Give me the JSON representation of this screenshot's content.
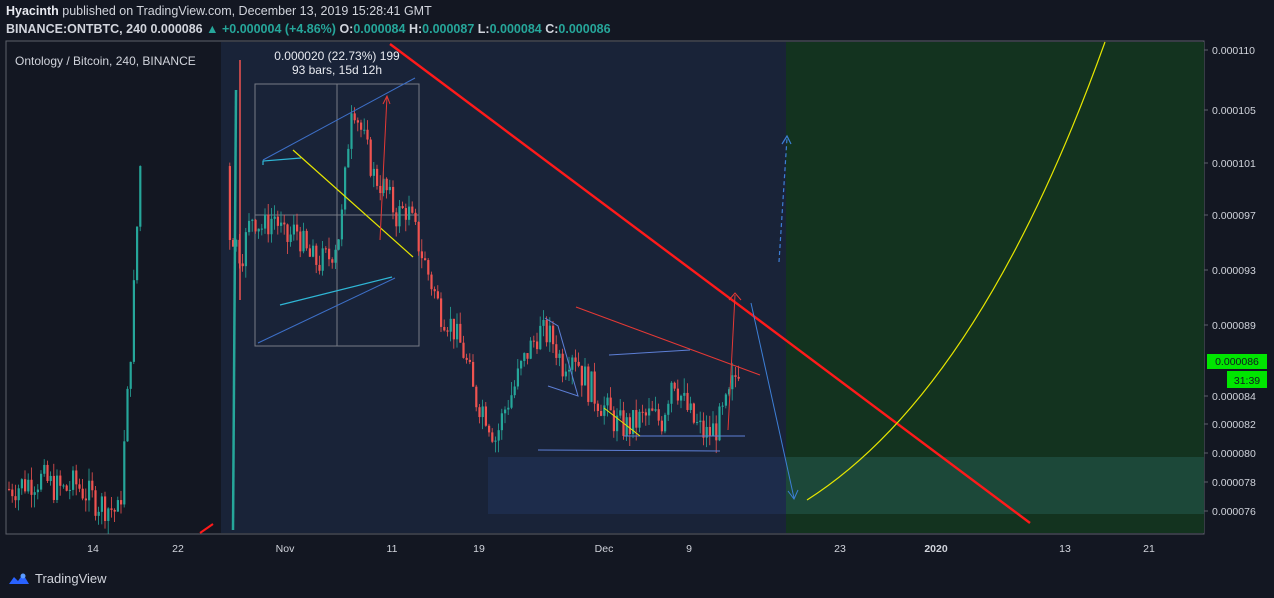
{
  "header": {
    "author": "Hyacinth",
    "published_text": "published on TradingView.com, December 13, 2019 15:28:41 GMT",
    "symbol_line": "BINANCE:ONTBTC, 240",
    "last_price": "0.000086",
    "change": "+0.000004 (+4.86%)",
    "open_label": "O:",
    "open": "0.000084",
    "high_label": "H:",
    "high": "0.000087",
    "low_label": "L:",
    "low": "0.000084",
    "close_label": "C:",
    "close": "0.000086"
  },
  "chart_title": "Ontology / Bitcoin, 240, BINANCE",
  "measure": {
    "line1": "0.000020 (22.73%) 199",
    "line2": "93 bars, 15d 12h"
  },
  "price_badge": "0.000086",
  "timer_badge": "31:39",
  "brand": "TradingView",
  "colors": {
    "background": "#131722",
    "up": "#26a69a",
    "down": "#ef5350",
    "accent_green": "#00e600",
    "trendline": "#ff1a1a",
    "target_curve": "#e6e600",
    "zone_green": "#13331f"
  },
  "chart_data": {
    "type": "candlestick",
    "y_ticks": [
      "0.000110",
      "0.000105",
      "0.000101",
      "0.000097",
      "0.000093",
      "0.000089",
      "0.000084",
      "0.000082",
      "0.000080",
      "0.000078",
      "0.000076"
    ],
    "x_ticks": [
      "14",
      "22",
      "Nov",
      "11",
      "19",
      "Dec",
      "9",
      "23",
      "2020",
      "13",
      "21"
    ],
    "current_price": 8.6e-05,
    "price_path": [
      [
        0,
        7.75e-05
      ],
      [
        1,
        7.78e-05
      ],
      [
        2,
        7.81e-05
      ],
      [
        3,
        7.82e-05
      ],
      [
        4,
        7.77e-05
      ],
      [
        5,
        7.74e-05
      ],
      [
        6,
        7.79e-05
      ],
      [
        7,
        7.72e-05
      ],
      [
        8,
        7.66e-05
      ],
      [
        9,
        7.63e-05
      ],
      [
        10,
        7.58e-05
      ],
      [
        11,
        8.7e-05
      ],
      [
        12,
        0.000103
      ],
      [
        13,
        9.8e-05
      ],
      [
        14,
        9.4e-05
      ],
      [
        15,
        9.25e-05
      ],
      [
        16,
        8.9e-05
      ],
      [
        17,
        9.5e-05
      ],
      [
        18,
        9.2e-05
      ],
      [
        19,
        9e-05
      ],
      [
        20,
        9.6e-05
      ],
      [
        21,
        9.4e-05
      ],
      [
        22,
        9.7e-05
      ],
      [
        23,
        9.6e-05
      ],
      [
        24,
        9.7e-05
      ],
      [
        25,
        9.5e-05
      ],
      [
        26,
        9.6e-05
      ],
      [
        27,
        9.4e-05
      ],
      [
        28,
        9.35e-05
      ],
      [
        29,
        9.4e-05
      ],
      [
        30,
        9.6e-05
      ],
      [
        31,
        0.000106
      ],
      [
        32,
        0.000103
      ],
      [
        33,
        0.0001
      ],
      [
        34,
        9.9e-05
      ],
      [
        35,
        9.7e-05
      ],
      [
        36,
        9.75e-05
      ],
      [
        37,
        9.5e-05
      ],
      [
        38,
        9.25e-05
      ],
      [
        39,
        9e-05
      ],
      [
        40,
        8.9e-05
      ],
      [
        41,
        8.7e-05
      ],
      [
        42,
        8.4e-05
      ],
      [
        43,
        8.3e-05
      ],
      [
        44,
        8.1e-05
      ],
      [
        45,
        8.35e-05
      ],
      [
        46,
        8.5e-05
      ],
      [
        47,
        8.7e-05
      ],
      [
        48,
        8.85e-05
      ],
      [
        49,
        8.8e-05
      ],
      [
        50,
        8.6e-05
      ],
      [
        51,
        8.7e-05
      ],
      [
        52,
        8.5e-05
      ],
      [
        53,
        8.4e-05
      ],
      [
        54,
        8.3e-05
      ],
      [
        55,
        8.2e-05
      ],
      [
        56,
        8.18e-05
      ],
      [
        57,
        8.23e-05
      ],
      [
        58,
        8.26e-05
      ],
      [
        59,
        8.22e-05
      ],
      [
        60,
        8.55e-05
      ],
      [
        61,
        8.35e-05
      ],
      [
        62,
        8.2e-05
      ],
      [
        63,
        8.12e-05
      ],
      [
        64,
        8.18e-05
      ],
      [
        65,
        8.35e-05
      ],
      [
        66,
        8.6e-05
      ]
    ],
    "drawings": {
      "descending_resistance": [
        [
          0.000111,
          "from Nov 9"
        ],
        [
          7.52e-05,
          "to Jan 10"
        ]
      ],
      "target_zone_top": 7.95e-05,
      "target_zone_bottom": 7.58e-05
    }
  }
}
